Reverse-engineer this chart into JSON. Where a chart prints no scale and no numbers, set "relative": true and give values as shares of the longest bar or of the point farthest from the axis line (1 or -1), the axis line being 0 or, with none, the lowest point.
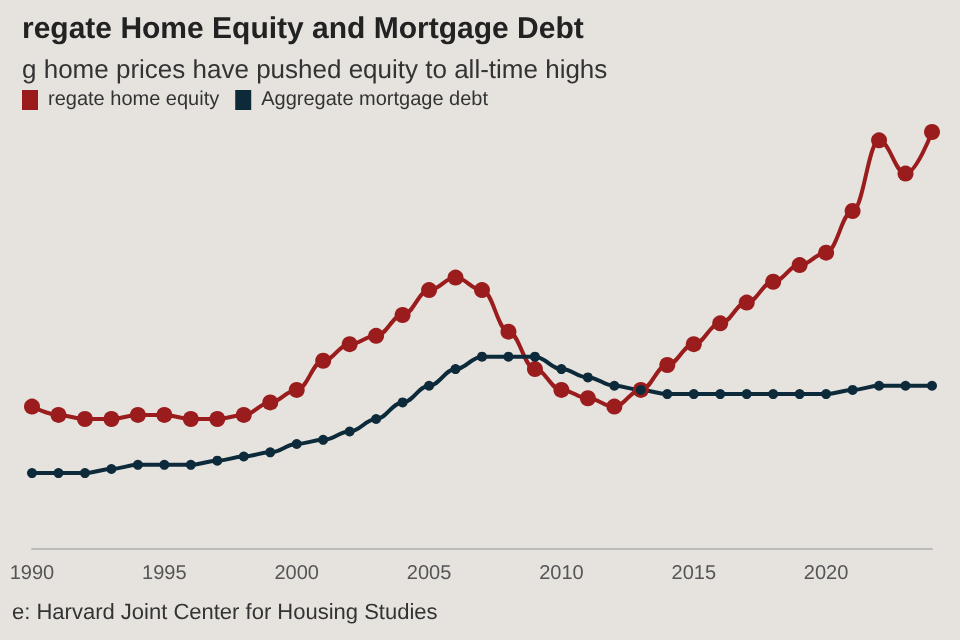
{
  "chart_data": {
    "type": "line",
    "title": "regate Home Equity and Mortgage Debt",
    "subtitle": "g home prices have pushed equity to all-time highs",
    "x": [
      1990,
      1991,
      1992,
      1993,
      1994,
      1995,
      1996,
      1997,
      1998,
      1999,
      2000,
      2001,
      2002,
      2003,
      2004,
      2005,
      2006,
      2007,
      2008,
      2009,
      2010,
      2011,
      2012,
      2013,
      2014,
      2015,
      2016,
      2017,
      2018,
      2019,
      2020,
      2021,
      2022,
      2023,
      2024
    ],
    "series": [
      {
        "name": "regate home equity",
        "color": "#9b1c1c",
        "values": [
          0.34,
          0.32,
          0.31,
          0.31,
          0.32,
          0.32,
          0.31,
          0.31,
          0.32,
          0.35,
          0.38,
          0.45,
          0.49,
          0.51,
          0.56,
          0.62,
          0.65,
          0.62,
          0.52,
          0.43,
          0.38,
          0.36,
          0.34,
          0.38,
          0.44,
          0.49,
          0.54,
          0.59,
          0.64,
          0.68,
          0.71,
          0.81,
          0.98,
          0.9,
          1.0
        ]
      },
      {
        "name": "Aggregate mortgage debt",
        "color": "#0d2a3a",
        "values": [
          0.18,
          0.18,
          0.18,
          0.19,
          0.2,
          0.2,
          0.2,
          0.21,
          0.22,
          0.23,
          0.25,
          0.26,
          0.28,
          0.31,
          0.35,
          0.39,
          0.43,
          0.46,
          0.46,
          0.46,
          0.43,
          0.41,
          0.39,
          0.38,
          0.37,
          0.37,
          0.37,
          0.37,
          0.37,
          0.37,
          0.37,
          0.38,
          0.39,
          0.39,
          0.39
        ]
      }
    ],
    "relative": true,
    "xlim": [
      1990,
      2024
    ],
    "xticks": [
      1990,
      1995,
      2000,
      2005,
      2010,
      2015,
      2020
    ],
    "marker": "circle",
    "legend": "top left",
    "annotations": [
      "e: Harvard Joint Center for Housing Studies"
    ]
  }
}
